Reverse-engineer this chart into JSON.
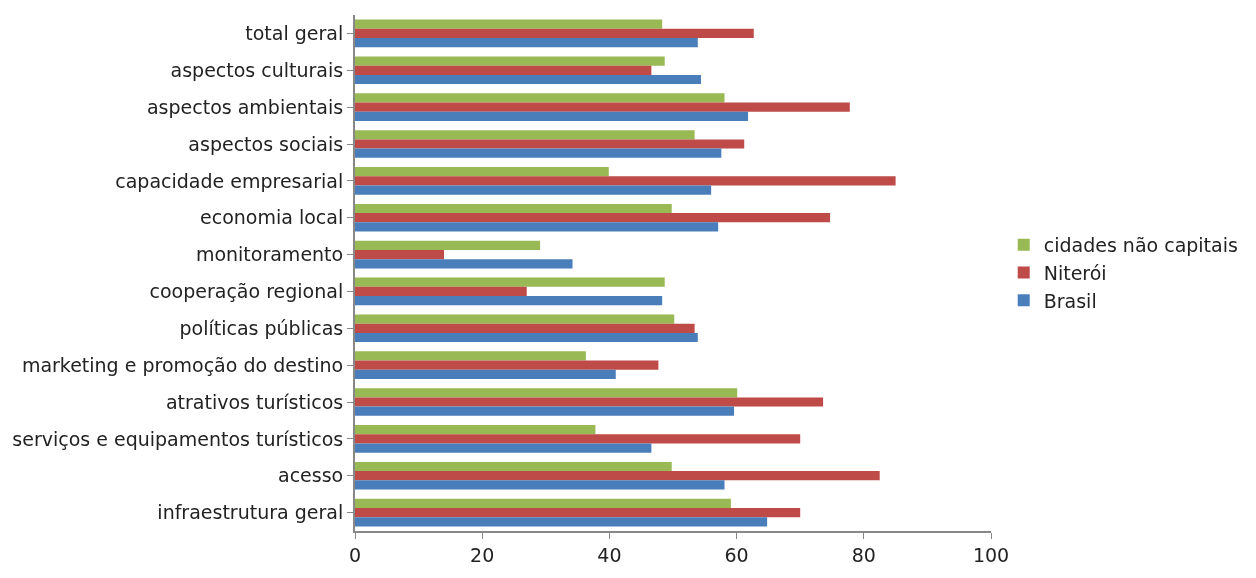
{
  "chart_data": {
    "type": "bar",
    "orientation": "horizontal",
    "categories": [
      "total geral",
      "aspectos culturais",
      "aspectos ambientais",
      "aspectos sociais",
      "capacidade empresarial",
      "economia local",
      "monitoramento",
      "cooperação regional",
      "políticas públicas",
      "marketing e promoção do destino",
      "atrativos turísticos",
      "serviços e equipamentos turísticos",
      "acesso",
      "infraestrutura geral"
    ],
    "series": [
      {
        "name": "cidades não capitais",
        "color": "#98b954",
        "values": [
          48.3,
          48.7,
          58.1,
          53.4,
          39.9,
          49.8,
          29.1,
          48.7,
          50.2,
          36.3,
          60.1,
          37.8,
          49.8,
          59.1
        ]
      },
      {
        "name": "Niterói",
        "color": "#be4b48",
        "values": [
          62.7,
          46.6,
          77.8,
          61.2,
          85.0,
          74.7,
          14.0,
          27.0,
          53.4,
          47.7,
          73.6,
          70.0,
          82.5,
          70.0
        ]
      },
      {
        "name": "Brasil",
        "color": "#4a7ebb",
        "values": [
          53.9,
          54.4,
          61.8,
          57.6,
          56.0,
          57.1,
          34.2,
          48.3,
          53.9,
          41.0,
          59.6,
          46.6,
          58.1,
          64.8
        ]
      }
    ],
    "xlim": [
      0,
      100
    ],
    "xticks": [
      0,
      20,
      40,
      60,
      80,
      100
    ],
    "legend": "right"
  }
}
